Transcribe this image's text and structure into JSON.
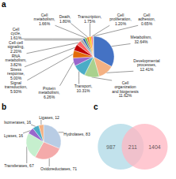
{
  "chart_data": [
    {
      "type": "pie",
      "title": "a",
      "categories": [
        "Metabolism,\n32.64%",
        "Developmental\nprocesses,\n12.41%",
        "Cell\norganization\nand biogenesis\n11.62%",
        "Transport,\n10.31%",
        "Protein\nmetabolism,\n6.26%",
        "Signal\ntransduction,\n5.93%",
        "Stress\nresponse,\n5.00%",
        "RNA\nmetabolism,\n3.82%",
        "Cell-cell\nsignaling,\n2.20%",
        "Cell\ncycle,\n1.61%",
        "Cell\nmetabolism,\n1.66%",
        "Death,\n1.80%",
        "Transcription,\n1.75%",
        "Cell\nproliferation,\n1.20%",
        "Cell\nadhesion,\n0.65%"
      ],
      "values": [
        32.64,
        12.41,
        11.62,
        10.31,
        6.26,
        5.93,
        5.0,
        3.82,
        2.2,
        1.61,
        1.66,
        1.8,
        1.75,
        1.2,
        0.65
      ],
      "colors": [
        "#4472C4",
        "#F4B183",
        "#A9D18E",
        "#4BACC6",
        "#9966CC",
        "#E26B0A",
        "#C00000",
        "#FF6666",
        "#AAAAAA",
        "#2058A8",
        "#70AD47",
        "#ED7D31",
        "#FFC000",
        "#FF4444",
        "#CCCCCC"
      ]
    },
    {
      "type": "pie",
      "title": "b",
      "categories": [
        "Hydrolases, 83",
        "Oxidoreductases, 71",
        "Transferases, 67",
        "Lyases, 16",
        "Isomerases, 16",
        "Ligases, 12"
      ],
      "values": [
        83,
        71,
        67,
        16,
        16,
        12
      ],
      "colors": [
        "#B8CCE4",
        "#F4AAAA",
        "#C6EFCE",
        "#9966CC",
        "#4BACC6",
        "#F4B183"
      ]
    },
    {
      "type": "venn",
      "title": "c",
      "values": [
        987,
        211,
        1404
      ],
      "colors": [
        "#ADD8E6",
        "#FFB6C1"
      ]
    }
  ]
}
